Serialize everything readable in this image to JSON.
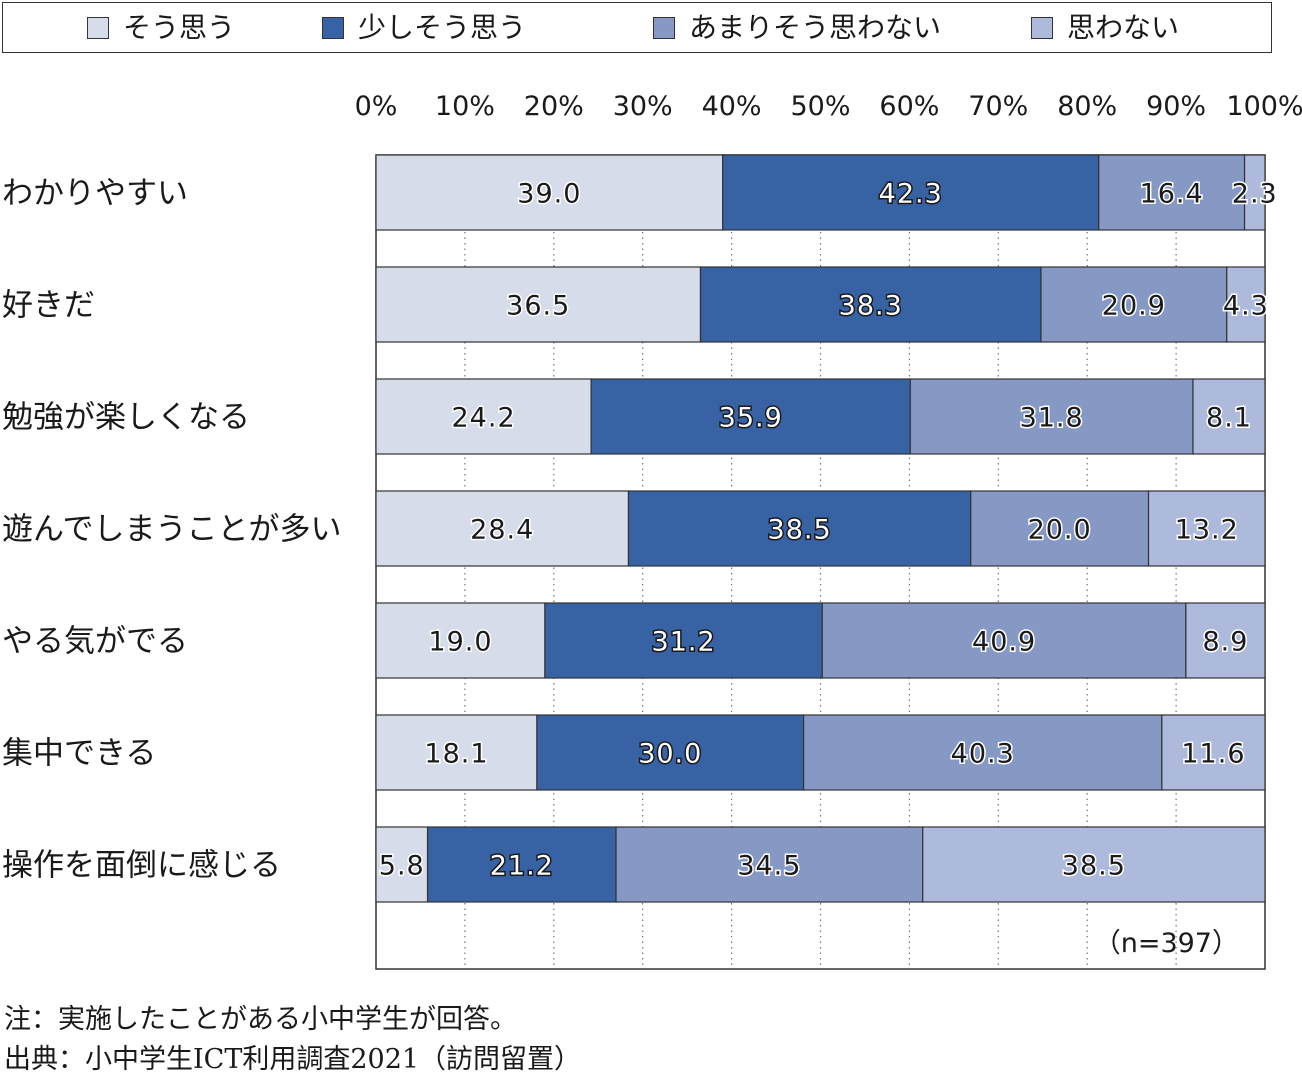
{
  "chart_data": {
    "type": "bar",
    "orientation": "horizontal",
    "stacked": true,
    "categories": [
      "わかりやすい",
      "好きだ",
      "勉強が楽しくなる",
      "遊んでしまうことが多い",
      "やる気がでる",
      "集中できる",
      "操作を面倒に感じる"
    ],
    "series": [
      {
        "name": "そう思う",
        "color": "#d6dcea",
        "values": [
          39.0,
          36.5,
          24.2,
          28.4,
          19.0,
          18.1,
          5.8
        ]
      },
      {
        "name": "少しそう思う",
        "color": "#3762a4",
        "values": [
          42.3,
          38.3,
          35.9,
          38.5,
          31.2,
          30.0,
          21.2
        ]
      },
      {
        "name": "あまりそう思わない",
        "color": "#8599c4",
        "values": [
          16.4,
          20.9,
          31.8,
          20.0,
          40.9,
          40.3,
          34.5
        ]
      },
      {
        "name": "思わない",
        "color": "#adbadb",
        "values": [
          2.3,
          4.3,
          8.1,
          13.2,
          8.9,
          11.6,
          38.5
        ]
      }
    ],
    "value_labels": [
      [
        "39.0",
        "42.3",
        "16.4",
        "2.3"
      ],
      [
        "36.5",
        "38.3",
        "20.9",
        "4.3"
      ],
      [
        "24.2",
        "35.9",
        "31.8",
        "8.1"
      ],
      [
        "28.4",
        "38.5",
        "20.0",
        "13.2"
      ],
      [
        "19.0",
        "31.2",
        "40.9",
        "8.9"
      ],
      [
        "18.1",
        "30.0",
        "40.3",
        "11.6"
      ],
      [
        "5.8",
        "21.2",
        "34.5",
        "38.5"
      ]
    ],
    "x_ticks": [
      "0%",
      "10%",
      "20%",
      "30%",
      "40%",
      "50%",
      "60%",
      "70%",
      "80%",
      "90%",
      "100%"
    ],
    "xlim": [
      0,
      100
    ],
    "x_axis_position": "top",
    "grid": "vertical dotted",
    "legend_position": "top",
    "annotation": "（n=397）"
  },
  "notes": [
    "注：実施したことがある小中学生が回答。",
    "出典：小中学生ICT利用調査2021（訪問留置）"
  ]
}
